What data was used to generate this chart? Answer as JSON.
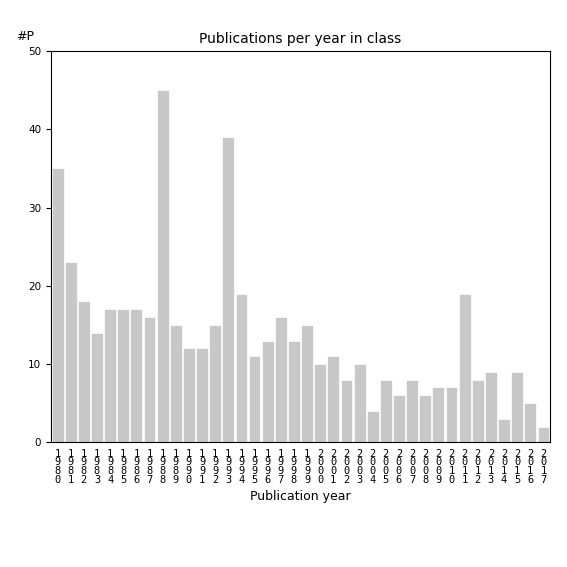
{
  "title": "Publications per year in class",
  "xlabel": "Publication year",
  "ylabel": "#P",
  "ylim": [
    0,
    50
  ],
  "yticks": [
    0,
    10,
    20,
    30,
    40,
    50
  ],
  "bar_color": "#c8c8c8",
  "bar_edgecolor": "#ffffff",
  "categories": [
    "1\n9\n8\n0",
    "1\n9\n8\n1",
    "1\n9\n8\n2",
    "1\n9\n8\n3",
    "1\n9\n8\n4",
    "1\n9\n8\n5",
    "1\n9\n8\n6",
    "1\n9\n8\n7",
    "1\n9\n8\n8",
    "1\n9\n8\n9",
    "1\n9\n9\n0",
    "1\n9\n9\n1",
    "1\n9\n9\n2",
    "1\n9\n9\n3",
    "1\n9\n9\n4",
    "1\n9\n9\n5",
    "1\n9\n9\n6",
    "1\n9\n9\n7",
    "1\n9\n9\n8",
    "1\n9\n9\n9",
    "2\n0\n0\n0",
    "2\n0\n0\n1",
    "2\n0\n0\n2",
    "2\n0\n0\n3",
    "2\n0\n0\n4",
    "2\n0\n0\n5",
    "2\n0\n0\n6",
    "2\n0\n0\n7",
    "2\n0\n0\n8",
    "2\n0\n0\n9",
    "2\n0\n1\n0",
    "2\n0\n1\n1",
    "2\n0\n1\n2",
    "2\n0\n1\n3",
    "2\n0\n1\n4",
    "2\n0\n1\n5",
    "2\n0\n1\n6",
    "2\n0\n1\n7"
  ],
  "values": [
    35,
    23,
    18,
    14,
    17,
    17,
    17,
    16,
    45,
    15,
    12,
    12,
    15,
    39,
    19,
    11,
    13,
    16,
    13,
    15,
    10,
    11,
    8,
    10,
    4,
    8,
    6,
    8,
    6,
    7,
    7,
    19,
    8,
    9,
    3,
    9,
    5,
    2
  ],
  "title_fontsize": 10,
  "tick_fontsize": 7.5,
  "xlabel_fontsize": 9,
  "ylabel_fontsize": 9
}
